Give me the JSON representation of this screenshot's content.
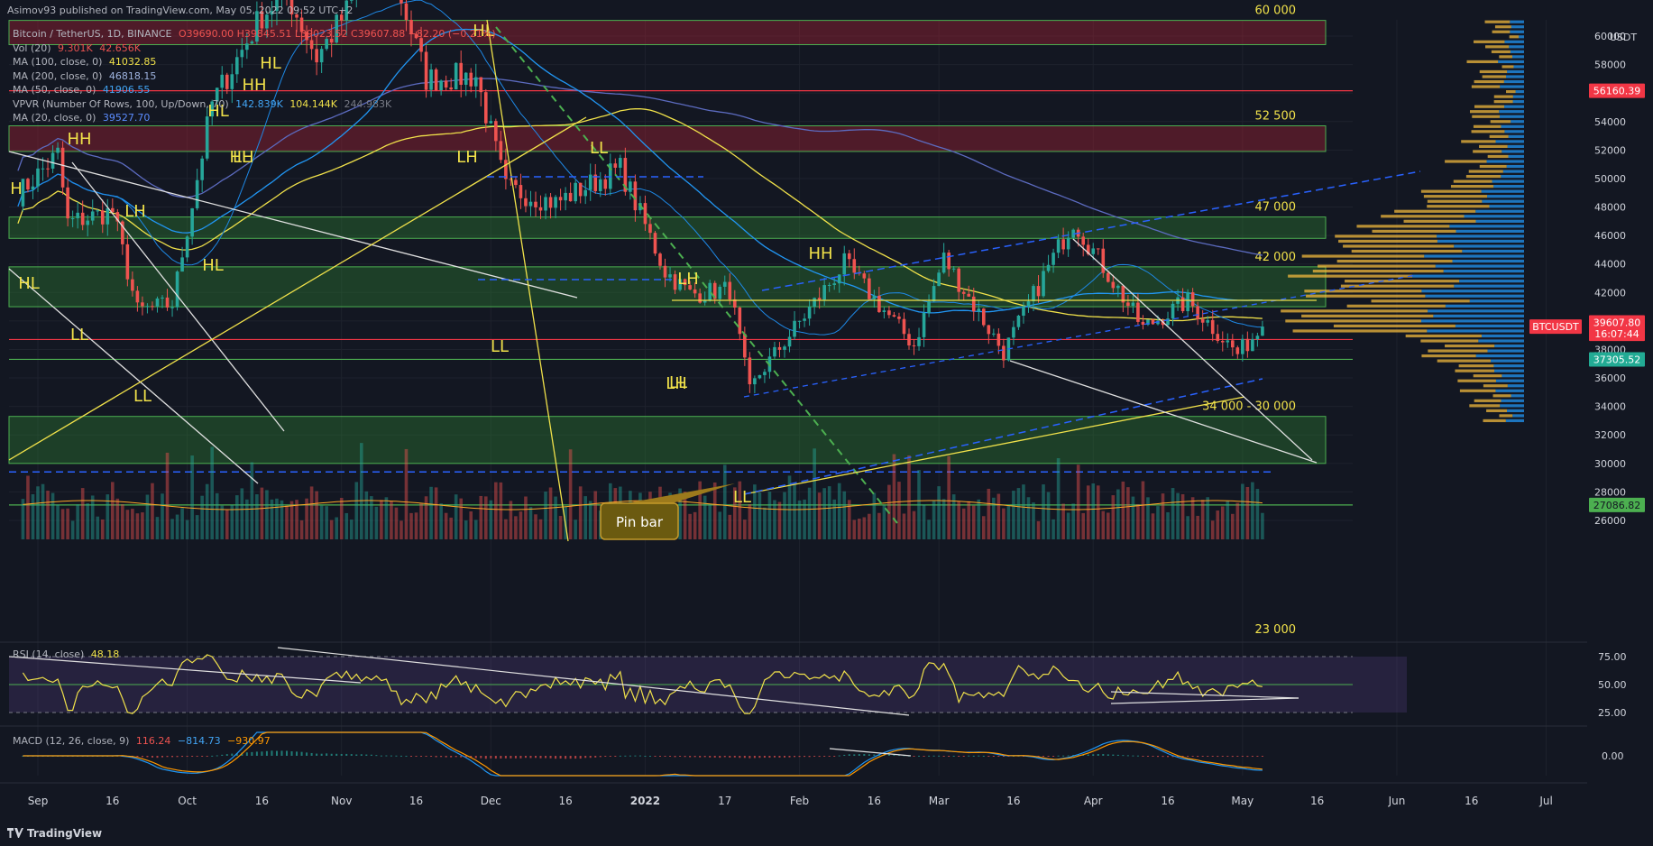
{
  "header": {
    "published_line": "Asimov93 published on TradingView.com, May 05, 2022 09:52 UTC+2"
  },
  "legend": {
    "symbol_line": "Bitcoin / TetherUS, 1D, BINANCE",
    "ohlc": "O39690.00 H39845.51 L39023.52 C39607.88 −82.20 (−0.21%)",
    "items": [
      {
        "label": "Vol (20)",
        "values": [
          "9.301K",
          "42.656K"
        ],
        "colors": [
          "#ef5350",
          "#ef5350"
        ]
      },
      {
        "label": "MA (100, close, 0)",
        "values": [
          "41032.85"
        ],
        "colors": [
          "#f0e14a"
        ]
      },
      {
        "label": "MA (200, close, 0)",
        "values": [
          "46818.15"
        ],
        "colors": [
          "#7b9ad6"
        ]
      },
      {
        "label": "MA (50, close, 0)",
        "values": [
          "41906.55"
        ],
        "colors": [
          "#2196f3"
        ]
      },
      {
        "label": "VPVR (Number Of Rows, 100, Up/Down, 70)",
        "values": [
          "142.839K",
          "104.144K",
          "244.983K"
        ],
        "colors": [
          "#2196f3",
          "#f0e14a",
          "#787b86"
        ]
      },
      {
        "label": "MA (20, close, 0)",
        "values": [
          "39527.70"
        ],
        "colors": [
          "#2962ff"
        ]
      }
    ],
    "rsi": {
      "label": "RSI (14, close)",
      "value": "48.18"
    },
    "macd": {
      "label": "MACD (12, 26, close, 9)",
      "values": [
        "116.24",
        "−814.73",
        "−930.97"
      ],
      "colors": [
        "#ef5350",
        "#2196f3",
        "#ff9800"
      ]
    }
  },
  "axis": {
    "currency": "USDT",
    "price_ticks": [
      60000,
      58000,
      56000,
      54000,
      52000,
      50000,
      48000,
      46000,
      44000,
      42000,
      40000,
      38000,
      36000,
      34000,
      32000,
      30000,
      28000,
      26000
    ],
    "price_labels": [
      {
        "text": "56160.39",
        "price": 56160,
        "bg": "#f23645",
        "fg": "#ffffff"
      },
      {
        "text": "BTCUSDT",
        "price": 39607.8,
        "bg": "#f23645",
        "fg": "#ffffff"
      },
      {
        "text": "39607.80",
        "price": 39900,
        "bg": "#f23645",
        "fg": "#ffffff"
      },
      {
        "text": "16:07:44",
        "price": 39100,
        "bg": "#f23645",
        "fg": "#ffffff"
      },
      {
        "text": "37305.52",
        "price": 37305,
        "bg": "#22ab94",
        "fg": "#ffffff"
      },
      {
        "text": "27086.82",
        "price": 27086,
        "bg": "#4caf50",
        "fg": "#131722"
      }
    ],
    "rsi_ticks": [
      "75.00",
      "50.00",
      "25.00"
    ],
    "macd_ticks": [
      "0.00"
    ],
    "time_labels": [
      "Sep",
      "16",
      "Oct",
      "16",
      "Nov",
      "16",
      "Dec",
      "16",
      "2022",
      "17",
      "Feb",
      "16",
      "Mar",
      "16",
      "Apr",
      "16",
      "May",
      "16",
      "Jun",
      "16",
      "Jul"
    ]
  },
  "zones": [
    {
      "label": "60 000",
      "low": 59400,
      "high": 61100,
      "color": "red"
    },
    {
      "label": "52 500",
      "low": 51900,
      "high": 53700,
      "color": "red"
    },
    {
      "label": "47 000",
      "low": 45800,
      "high": 47300,
      "color": "green"
    },
    {
      "label": "42 000",
      "low": 41000,
      "high": 43800,
      "color": "green"
    },
    {
      "label": "34 000 - 30 000",
      "low": 30000,
      "high": 33300,
      "color": "green"
    },
    {
      "label": "23 000",
      "low": null,
      "high": null,
      "color": "none"
    }
  ],
  "annotations": {
    "swing_labels": [
      "H",
      "HL",
      "LL",
      "HH",
      "LL",
      "LH",
      "HL",
      "LL",
      "HL",
      "HH",
      "HL",
      "HH",
      "HL",
      "LH",
      "LL",
      "LL",
      "LH",
      "LH",
      "LL",
      "LL",
      "HH"
    ],
    "callout": "Pin bar"
  },
  "chart_data": {
    "type": "candlestick",
    "symbol": "Bitcoin / TetherUS, 1D, BINANCE",
    "x_range": [
      "2021-08-28",
      "2022-05-05"
    ],
    "ylim": [
      22000,
      63000
    ],
    "key_prices": {
      "last": 39607.8,
      "ma100": 41032.85,
      "ma200": 46818.15,
      "ma50": 41906.55,
      "ma20": 39527.7
    },
    "price_path": [
      {
        "date": "2021-08-28",
        "close": 48900
      },
      {
        "date": "2021-09-05",
        "close": 51700
      },
      {
        "date": "2021-09-07",
        "close": 46900
      },
      {
        "date": "2021-09-16",
        "close": 47700
      },
      {
        "date": "2021-09-21",
        "close": 40700
      },
      {
        "date": "2021-09-28",
        "close": 41200
      },
      {
        "date": "2021-10-06",
        "close": 55300
      },
      {
        "date": "2021-10-16",
        "close": 61500
      },
      {
        "date": "2021-10-21",
        "close": 63000
      },
      {
        "date": "2021-10-27",
        "close": 58500
      },
      {
        "date": "2021-11-10",
        "close": 66000
      },
      {
        "date": "2021-11-18",
        "close": 57000
      },
      {
        "date": "2021-11-28",
        "close": 57200
      },
      {
        "date": "2021-12-04",
        "close": 49300
      },
      {
        "date": "2021-12-14",
        "close": 48300
      },
      {
        "date": "2021-12-27",
        "close": 50700
      },
      {
        "date": "2022-01-05",
        "close": 43500
      },
      {
        "date": "2022-01-10",
        "close": 41900
      },
      {
        "date": "2022-01-18",
        "close": 42200
      },
      {
        "date": "2022-01-22",
        "close": 35000
      },
      {
        "date": "2022-01-24",
        "close": 36300
      },
      {
        "date": "2022-02-10",
        "close": 44000
      },
      {
        "date": "2022-02-24",
        "close": 38300
      },
      {
        "date": "2022-03-02",
        "close": 44400
      },
      {
        "date": "2022-03-14",
        "close": 37800
      },
      {
        "date": "2022-03-28",
        "close": 47100
      },
      {
        "date": "2022-04-11",
        "close": 39500
      },
      {
        "date": "2022-04-20",
        "close": 41400
      },
      {
        "date": "2022-04-30",
        "close": 37700
      },
      {
        "date": "2022-05-05",
        "close": 39600
      }
    ],
    "rsi_last": 48.18,
    "rsi_ylim": [
      0,
      100
    ],
    "macd_last": {
      "hist": 116.24,
      "macd": -814.73,
      "signal": -930.97
    }
  }
}
